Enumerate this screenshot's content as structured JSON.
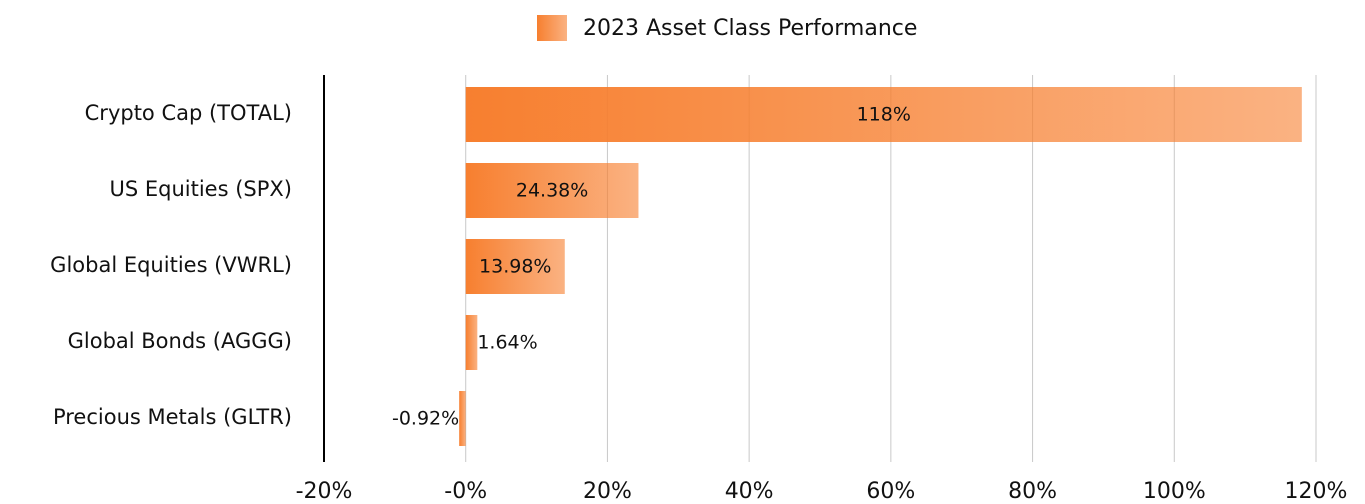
{
  "chart_data": {
    "type": "bar",
    "orientation": "horizontal",
    "categories": [
      "Crypto Cap (TOTAL)",
      "US Equities (SPX)",
      "Global Equities (VWRL)",
      "Global Bonds (AGGG)",
      "Precious Metals (GLTR)"
    ],
    "series": [
      {
        "name": "2023 Asset Class Performance",
        "color": "#f77f2f",
        "values": [
          118,
          24.38,
          13.98,
          1.64,
          -0.92
        ],
        "value_labels": [
          "118%",
          "24.38%",
          "13.98%",
          "1.64%",
          "-0.92%"
        ]
      }
    ],
    "xlim": [
      -20,
      120
    ],
    "xticks": [
      {
        "value": -20,
        "label": "-20%"
      },
      {
        "value": 0,
        "label": "-0%"
      },
      {
        "value": 20,
        "label": "20%"
      },
      {
        "value": 40,
        "label": "40%"
      },
      {
        "value": 60,
        "label": "60%"
      },
      {
        "value": 80,
        "label": "80%"
      },
      {
        "value": 100,
        "label": "100%"
      },
      {
        "value": 120,
        "label": "120%"
      }
    ],
    "grid": true,
    "legend": "top"
  }
}
